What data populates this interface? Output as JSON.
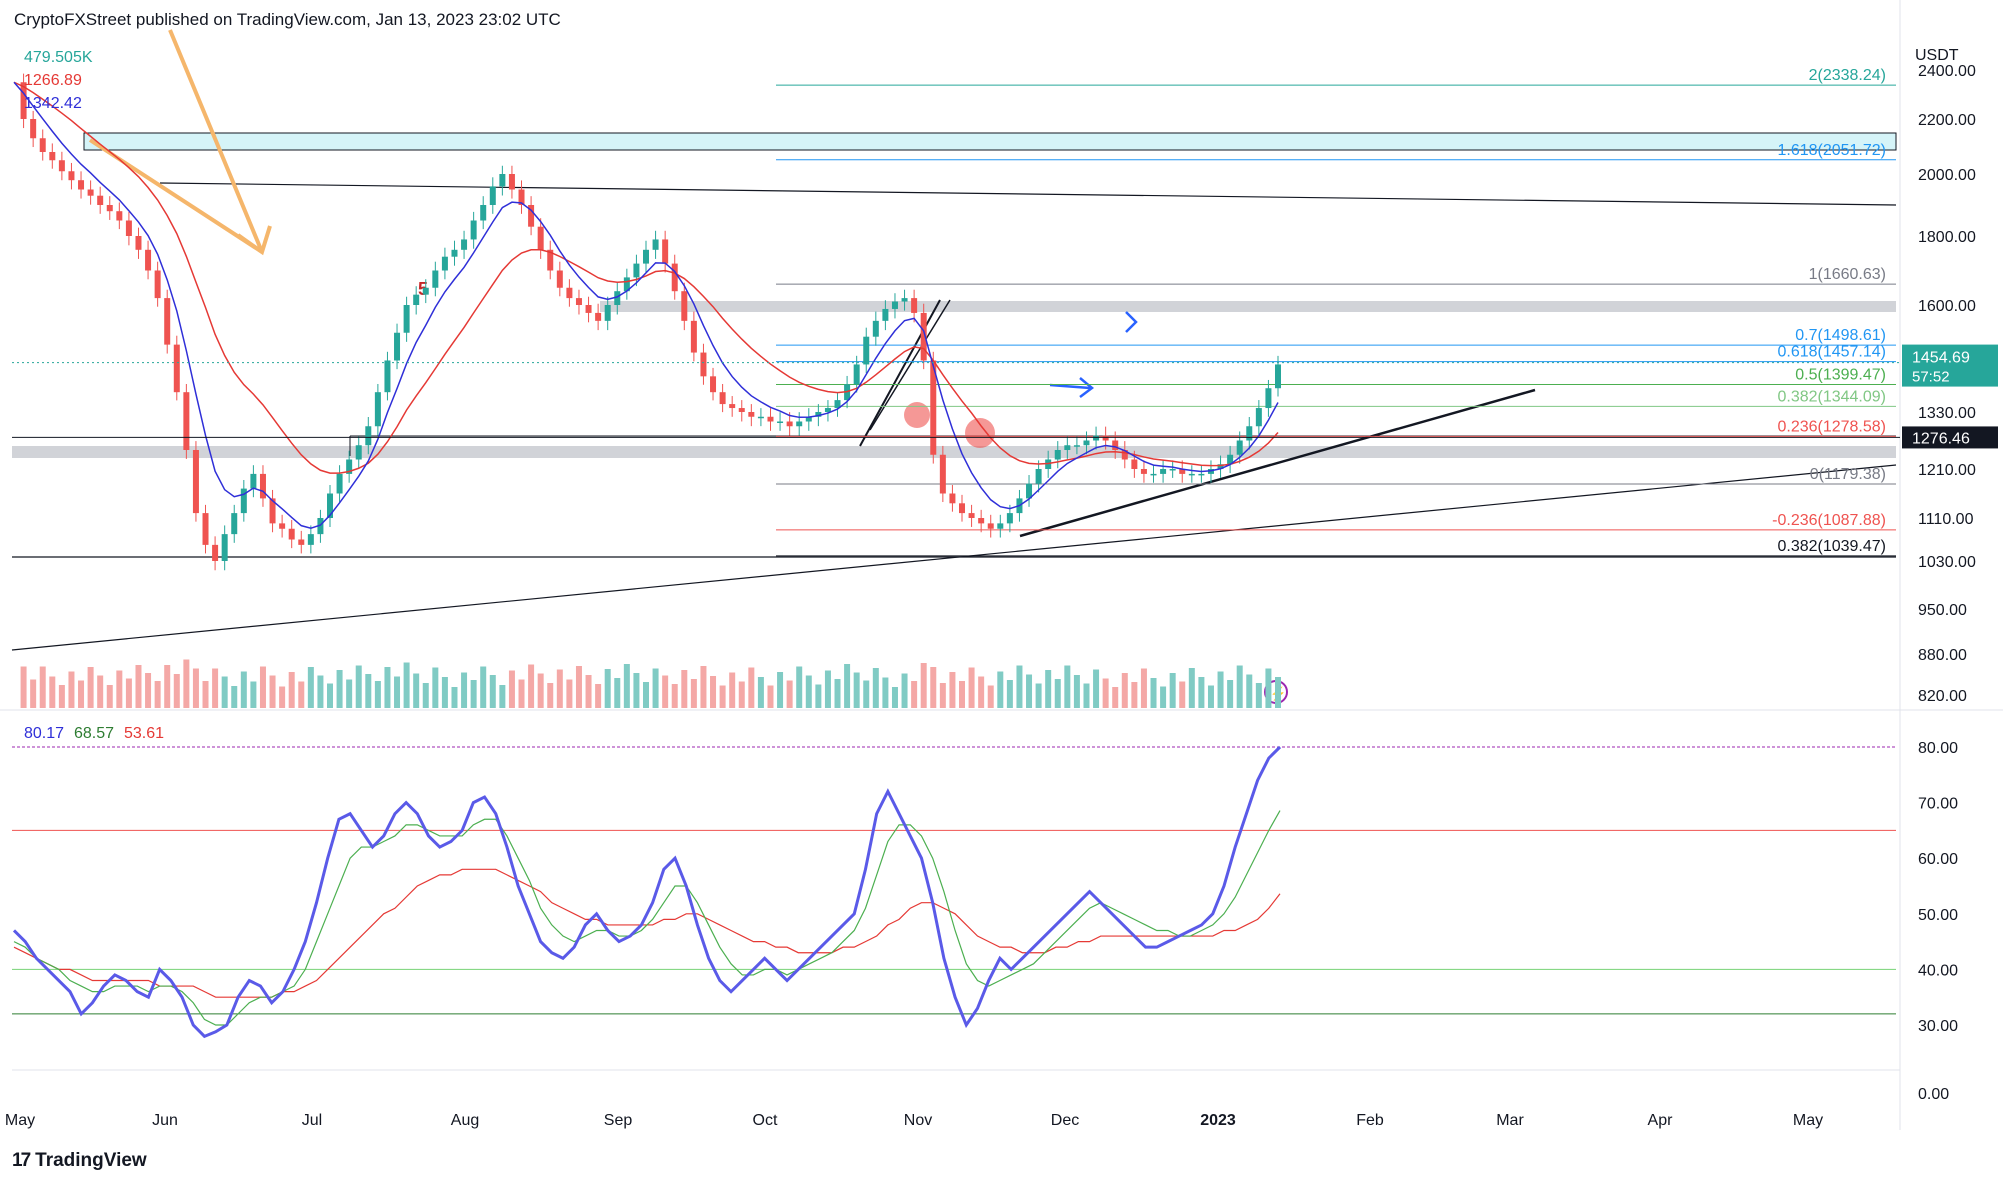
{
  "header": {
    "text": "CryptoFXStreet published on TradingView.com, Jan 13, 2023 23:02 UTC"
  },
  "footer": {
    "brand": "TradingView",
    "brand_icon": "tradingview-logo-icon"
  },
  "colors": {
    "up": "#26a69a",
    "down": "#ef5350",
    "ema_red": "#e53935",
    "ema_blue": "#2f2fd8",
    "rsi": "#5a5ae8",
    "rsi_ma": "#4caf50",
    "rsi_ma2": "#e53935"
  },
  "legend": [
    {
      "text": "479.505K",
      "color": "#26a69a"
    },
    {
      "text": "1266.89",
      "color": "#e53935"
    },
    {
      "text": "1342.42",
      "color": "#2f2fd8"
    }
  ],
  "rsi_legend": [
    {
      "text": "80.17",
      "color": "#2f2fd8"
    },
    {
      "text": "68.57",
      "color": "#2e7d32"
    },
    {
      "text": "53.61",
      "color": "#e53935"
    }
  ],
  "chart_data": [
    {
      "type": "candlestick",
      "title": "",
      "currency": "USDT",
      "y_axis_ticks": [
        "2400.00",
        "2200.00",
        "2000.00",
        "1800.00",
        "1600.00",
        "1330.00",
        "1210.00",
        "1110.00",
        "1030.00",
        "950.00",
        "880.00",
        "820.00"
      ],
      "x_axis_ticks": [
        "May",
        "Jun",
        "Jul",
        "Aug",
        "Sep",
        "Oct",
        "Nov",
        "Dec",
        "2023",
        "Feb",
        "Mar",
        "Apr",
        "May"
      ],
      "last_price": "1454.69",
      "countdown": "57:52",
      "marked_price": "1276.46",
      "fib_levels": [
        {
          "label": "2(2338.24)",
          "value": 2338.24,
          "color": "#26a69a"
        },
        {
          "label": "1.618(2051.72)",
          "value": 2051.72,
          "color": "#2196f3"
        },
        {
          "label": "1(1660.63)",
          "value": 1660.63,
          "color": "#787b86"
        },
        {
          "label": "0.7(1498.61)",
          "value": 1498.61,
          "color": "#2196f3"
        },
        {
          "label": "0.618(1457.14)",
          "value": 1457.14,
          "color": "#2196f3"
        },
        {
          "label": "0.5(1399.47)",
          "value": 1399.47,
          "color": "#4caf50"
        },
        {
          "label": "0.382(1344.09)",
          "value": 1344.09,
          "color": "#81c784"
        },
        {
          "label": "0.236(1278.58)",
          "value": 1278.58,
          "color": "#ef5350"
        },
        {
          "label": "0(1179.38)",
          "value": 1179.38,
          "color": "#787b86"
        },
        {
          "label": "-0.236(1087.88)",
          "value": 1087.88,
          "color": "#ef5350"
        },
        {
          "label": "0.382(1039.47)",
          "value": 1039.47,
          "color": "#131722"
        }
      ],
      "price_series_close": [
        2350,
        2200,
        2130,
        2080,
        2050,
        2010,
        1980,
        1950,
        1930,
        1900,
        1880,
        1850,
        1800,
        1760,
        1700,
        1620,
        1500,
        1380,
        1250,
        1120,
        1060,
        1030,
        1080,
        1120,
        1170,
        1200,
        1150,
        1100,
        1090,
        1070,
        1060,
        1080,
        1110,
        1160,
        1200,
        1230,
        1260,
        1300,
        1380,
        1460,
        1530,
        1600,
        1630,
        1650,
        1700,
        1740,
        1760,
        1790,
        1850,
        1900,
        1960,
        2000,
        1950,
        1900,
        1830,
        1760,
        1700,
        1650,
        1620,
        1600,
        1580,
        1560,
        1600,
        1640,
        1680,
        1720,
        1760,
        1790,
        1720,
        1640,
        1560,
        1480,
        1420,
        1380,
        1350,
        1340,
        1330,
        1320,
        1320,
        1310,
        1310,
        1300,
        1310,
        1320,
        1330,
        1340,
        1360,
        1400,
        1450,
        1520,
        1560,
        1590,
        1610,
        1620,
        1580,
        1460,
        1240,
        1160,
        1140,
        1120,
        1110,
        1100,
        1090,
        1100,
        1120,
        1150,
        1180,
        1210,
        1230,
        1250,
        1260,
        1260,
        1270,
        1280,
        1270,
        1250,
        1230,
        1210,
        1200,
        1200,
        1210,
        1210,
        1200,
        1200,
        1200,
        1210,
        1220,
        1240,
        1270,
        1300,
        1340,
        1390,
        1450
      ],
      "rsi_ticks": [
        "80.00",
        "70.00",
        "60.00",
        "50.00",
        "40.00",
        "30.00",
        "0.00"
      ],
      "rsi_levels": [
        80,
        65,
        40,
        32
      ],
      "rsi_values": [
        47,
        45,
        42,
        40,
        38,
        36,
        32,
        34,
        37,
        39,
        38,
        36,
        35,
        40,
        38,
        35,
        30,
        25,
        27,
        30,
        35,
        38,
        37,
        34,
        36,
        40,
        45,
        52,
        60,
        67,
        68,
        65,
        62,
        64,
        68,
        70,
        68,
        64,
        62,
        63,
        65,
        70,
        71,
        68,
        62,
        55,
        50,
        45,
        43,
        42,
        44,
        48,
        50,
        47,
        45,
        46,
        48,
        52,
        58,
        60,
        55,
        48,
        42,
        38,
        36,
        38,
        40,
        42,
        40,
        38,
        40,
        42,
        44,
        46,
        48,
        50,
        58,
        68,
        72,
        68,
        64,
        60,
        52,
        42,
        35,
        30,
        33,
        38,
        42,
        40,
        42,
        44,
        46,
        48,
        50,
        52,
        54,
        52,
        50,
        48,
        46,
        44,
        44,
        45,
        46,
        47,
        48,
        50,
        55,
        62,
        68,
        74,
        78,
        80
      ],
      "rsi_ma": [
        45,
        44,
        42,
        41,
        40,
        38,
        37,
        36,
        36,
        37,
        37,
        37,
        36,
        37,
        37,
        36,
        34,
        31,
        30,
        30,
        32,
        34,
        35,
        35,
        36,
        37,
        40,
        45,
        50,
        55,
        60,
        62,
        62,
        63,
        64,
        66,
        66,
        65,
        64,
        64,
        64,
        66,
        67,
        67,
        64,
        60,
        56,
        51,
        48,
        46,
        45,
        46,
        47,
        47,
        46,
        46,
        47,
        49,
        52,
        55,
        55,
        52,
        48,
        44,
        41,
        39,
        39,
        40,
        40,
        39,
        40,
        41,
        42,
        43,
        45,
        47,
        51,
        57,
        63,
        66,
        66,
        64,
        60,
        54,
        47,
        41,
        38,
        37,
        38,
        39,
        40,
        41,
        43,
        45,
        47,
        49,
        51,
        52,
        51,
        50,
        49,
        48,
        47,
        47,
        46,
        46,
        47,
        48,
        50,
        53,
        57,
        61,
        65,
        68.57
      ],
      "rsi_ma2": [
        44,
        43,
        42,
        41,
        40,
        40,
        39,
        38,
        38,
        38,
        38,
        38,
        38,
        37,
        37,
        37,
        37,
        36,
        35,
        35,
        35,
        35,
        35,
        35,
        36,
        36,
        37,
        38,
        40,
        42,
        44,
        46,
        48,
        50,
        51,
        53,
        55,
        56,
        57,
        57,
        58,
        58,
        58,
        58,
        57,
        56,
        55,
        54,
        52,
        51,
        50,
        49,
        49,
        48,
        48,
        48,
        48,
        48,
        49,
        49,
        50,
        50,
        49,
        48,
        47,
        46,
        45,
        45,
        44,
        44,
        43,
        43,
        43,
        43,
        44,
        44,
        45,
        46,
        48,
        49,
        51,
        52,
        52,
        51,
        50,
        48,
        46,
        45,
        44,
        44,
        43,
        43,
        43,
        44,
        44,
        45,
        45,
        46,
        46,
        46,
        46,
        46,
        46,
        46,
        46,
        46,
        46,
        46,
        47,
        47,
        48,
        49,
        51,
        53.61
      ]
    }
  ]
}
